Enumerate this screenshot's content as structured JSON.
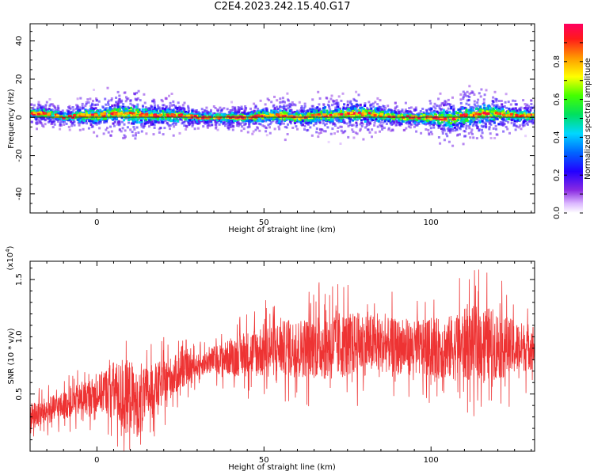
{
  "figure": {
    "title": "C2E4.2023.242.15.40.G17"
  },
  "chart_data": [
    {
      "type": "heatmap",
      "xlabel": "Height of straight line (km)",
      "ylabel": "Frequency (Hz)",
      "xlim": [
        -20,
        131
      ],
      "ylim": [
        -50,
        49
      ],
      "xticks": [
        0,
        50,
        100
      ],
      "yticks": [
        -40,
        -20,
        0,
        20,
        40
      ],
      "grid": false,
      "colorbar": {
        "label": "Normalized spectral amplitude",
        "range": [
          0.0,
          1.0
        ],
        "ticks": [
          0.0,
          0.2,
          0.4,
          0.6,
          0.8
        ],
        "colormap": [
          "#ffffff",
          "#dcb8ff",
          "#8a2be2",
          "#2200ff",
          "#0066ff",
          "#00d8ff",
          "#00e060",
          "#44ff00",
          "#ffff00",
          "#ff9900",
          "#ff1a1a",
          "#ff0060"
        ]
      },
      "ridge": {
        "x": [
          -20,
          -15,
          -10,
          -5,
          0,
          5,
          10,
          15,
          20,
          25,
          30,
          35,
          40,
          45,
          50,
          55,
          60,
          65,
          70,
          75,
          80,
          85,
          90,
          95,
          100,
          105,
          110,
          115,
          120,
          125,
          130
        ],
        "center_hz": [
          2,
          2,
          0,
          1,
          1,
          2,
          2,
          1,
          1,
          1,
          0,
          0,
          0,
          0,
          1,
          1,
          0,
          1,
          1,
          2,
          2,
          1,
          0,
          0,
          0,
          -1,
          1,
          2,
          2,
          1,
          1
        ],
        "spread_hz": [
          4,
          5,
          4,
          6,
          8,
          8,
          10,
          7,
          7,
          6,
          4,
          4,
          5,
          5,
          6,
          7,
          6,
          7,
          7,
          8,
          8,
          6,
          5,
          5,
          7,
          9,
          10,
          10,
          8,
          6,
          5
        ]
      }
    },
    {
      "type": "line",
      "xlabel": "Height of straight line (km)",
      "ylabel": "SNR (10 * v/v)",
      "y_multiplier": "(x10^4)",
      "y_multiplier_base": "(x10",
      "y_multiplier_exp": "4",
      "y_multiplier_close": ")",
      "xlim": [
        -20,
        131
      ],
      "ylim": [
        0.0,
        1.66
      ],
      "xticks": [
        0,
        50,
        100
      ],
      "yticks": [
        0.5,
        1.0,
        1.5
      ],
      "ytick_labels": [
        "0.5",
        "1.0",
        "1.5"
      ],
      "grid": false,
      "series": [
        {
          "color": "#ee3333",
          "x": [
            -20,
            -15,
            -10,
            -5,
            0,
            5,
            8,
            10,
            12,
            15,
            20,
            25,
            30,
            35,
            40,
            45,
            50,
            55,
            60,
            65,
            70,
            75,
            80,
            85,
            90,
            95,
            100,
            105,
            110,
            115,
            120,
            125,
            130
          ],
          "center": [
            0.3,
            0.35,
            0.4,
            0.45,
            0.5,
            0.55,
            0.45,
            0.5,
            0.4,
            0.5,
            0.6,
            0.7,
            0.75,
            0.8,
            0.82,
            0.85,
            0.88,
            0.9,
            0.9,
            0.92,
            0.93,
            0.93,
            0.94,
            0.93,
            0.92,
            0.9,
            0.9,
            0.9,
            0.93,
            0.95,
            0.93,
            0.9,
            0.92
          ],
          "amplitude": [
            0.15,
            0.15,
            0.15,
            0.18,
            0.2,
            0.3,
            0.4,
            0.4,
            0.35,
            0.3,
            0.25,
            0.2,
            0.12,
            0.15,
            0.2,
            0.25,
            0.3,
            0.3,
            0.32,
            0.35,
            0.4,
            0.35,
            0.35,
            0.3,
            0.3,
            0.3,
            0.32,
            0.35,
            0.4,
            0.42,
            0.38,
            0.3,
            0.25
          ]
        }
      ]
    }
  ]
}
